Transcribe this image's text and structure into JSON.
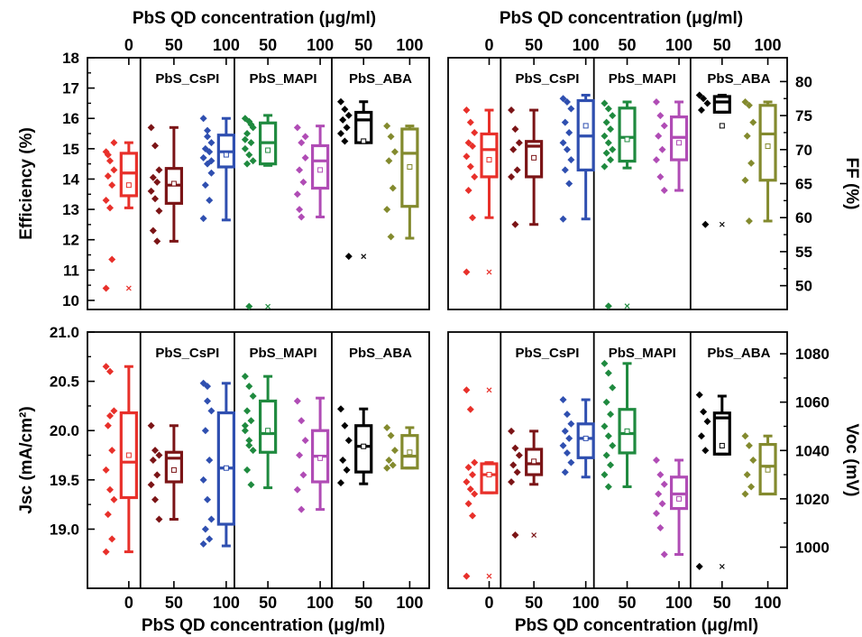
{
  "colors": {
    "CsPI": "#7b1416",
    "ABA": "#000000",
    "MAPI": "#1f8a3f",
    "red": "#e8302a",
    "olive": "#838a2e",
    "blue": "#2f4fb0",
    "magenta": "#b04cb5"
  },
  "figure": {
    "xlabel_top": "PbS QD concentration (μg/ml)",
    "xlabel_bottom": "PbS QD concentration (μg/ml)",
    "xtick_labels": [
      "0",
      "50",
      "100",
      "50",
      "100",
      "50",
      "100"
    ]
  },
  "chart_data": [
    {
      "type": "box",
      "name": "efficiency",
      "ylabel": "Efficiency (%)",
      "y_side": "left",
      "xlabel_side": "top",
      "ylim": [
        9.7,
        18
      ],
      "yticks": [
        10,
        11,
        12,
        13,
        14,
        15,
        16,
        17,
        18
      ],
      "panel_labels": [
        "",
        "PbS_CsPI",
        "PbS_MAPI",
        "PbS_ABA"
      ],
      "groups": [
        {
          "conc": "0",
          "color": "red",
          "q1": 13.45,
          "median": 14.2,
          "q3": 14.85,
          "whisker_low": 13.05,
          "whisker_high": 15.2,
          "mean": 13.8,
          "points": [
            14.9,
            14.6,
            14.3,
            14.1,
            13.8,
            13.3,
            13.05,
            15.2,
            14.8,
            11.35,
            10.4
          ],
          "outliers": [
            10.4
          ]
        },
        {
          "conc": "50",
          "color": "CsPI",
          "q1": 13.2,
          "median": 13.8,
          "q3": 14.35,
          "whisker_low": 11.95,
          "whisker_high": 15.7,
          "mean": 13.85,
          "points": [
            15.7,
            15.1,
            14.3,
            14.05,
            13.9,
            13.6,
            13.35,
            12.95,
            12.3,
            11.95
          ],
          "outliers": []
        },
        {
          "conc": "100",
          "color": "blue",
          "q1": 14.4,
          "median": 14.9,
          "q3": 15.45,
          "whisker_low": 12.65,
          "whisker_high": 16.0,
          "mean": 14.8,
          "points": [
            16.0,
            15.6,
            15.2,
            15.0,
            14.9,
            14.7,
            14.5,
            14.2,
            13.8,
            13.3,
            12.7,
            15.4,
            14.6
          ],
          "outliers": []
        },
        {
          "conc": "50",
          "color": "MAPI",
          "q1": 14.5,
          "median": 15.2,
          "q3": 15.85,
          "whisker_low": 14.45,
          "whisker_high": 16.1,
          "mean": 14.95,
          "points": [
            16.0,
            15.9,
            15.7,
            15.5,
            15.2,
            15.0,
            14.8,
            14.6,
            14.5,
            15.8,
            15.3,
            9.8
          ],
          "outliers": [
            9.8
          ]
        },
        {
          "conc": "100",
          "color": "magenta",
          "q1": 13.7,
          "median": 14.6,
          "q3": 15.1,
          "whisker_low": 12.75,
          "whisker_high": 15.75,
          "mean": 14.3,
          "points": [
            15.7,
            15.2,
            14.7,
            14.3,
            13.9,
            13.5,
            12.75,
            15.4,
            13.0
          ],
          "outliers": []
        },
        {
          "conc": "50",
          "color": "ABA",
          "q1": 15.2,
          "median": 15.95,
          "q3": 16.2,
          "whisker_low": 15.2,
          "whisker_high": 16.55,
          "mean": 15.25,
          "points": [
            16.55,
            16.3,
            16.1,
            15.95,
            15.7,
            15.5,
            15.25,
            11.45
          ],
          "outliers": [
            11.45
          ]
        },
        {
          "conc": "100",
          "color": "olive",
          "q1": 13.1,
          "median": 14.85,
          "q3": 15.65,
          "whisker_low": 12.05,
          "whisker_high": 15.75,
          "mean": 14.4,
          "points": [
            15.75,
            15.4,
            14.9,
            14.6,
            13.7,
            13.0,
            12.1
          ],
          "outliers": []
        }
      ]
    },
    {
      "type": "box",
      "name": "fill-factor",
      "ylabel": "FF (%)",
      "y_side": "right",
      "xlabel_side": "top",
      "ylim": [
        46.5,
        83.5
      ],
      "yticks": [
        50,
        55,
        60,
        65,
        70,
        75,
        80
      ],
      "panel_labels": [
        "",
        "PbS_CsPI",
        "PbS_MAPI",
        "PbS_ABA"
      ],
      "groups": [
        {
          "conc": "0",
          "color": "red",
          "q1": 66.0,
          "median": 70.0,
          "q3": 72.3,
          "whisker_low": 60.0,
          "whisker_high": 75.8,
          "mean": 68.5,
          "points": [
            75.8,
            74.0,
            72.5,
            71.0,
            70.5,
            69.0,
            67.5,
            66.0,
            64.0,
            60.0,
            52.0
          ],
          "outliers": [
            52.0
          ]
        },
        {
          "conc": "50",
          "color": "CsPI",
          "q1": 66.0,
          "median": 70.5,
          "q3": 71.2,
          "whisker_low": 59.0,
          "whisker_high": 75.8,
          "mean": 68.8,
          "points": [
            75.8,
            73.0,
            71.0,
            70.0,
            67.0,
            66.0,
            59.0
          ],
          "outliers": []
        },
        {
          "conc": "100",
          "color": "blue",
          "q1": 67.0,
          "median": 72.0,
          "q3": 77.2,
          "whisker_low": 59.8,
          "whisker_high": 78.0,
          "mean": 73.5,
          "points": [
            77.5,
            77.0,
            76.0,
            74.0,
            72.5,
            71.0,
            70.0,
            68.5,
            67.0,
            65.0,
            59.8
          ],
          "outliers": []
        },
        {
          "conc": "50",
          "color": "MAPI",
          "q1": 68.3,
          "median": 71.8,
          "q3": 76.1,
          "whisker_low": 67.3,
          "whisker_high": 77.0,
          "mean": 71.5,
          "points": [
            76.8,
            76.0,
            75.0,
            74.0,
            73.0,
            72.0,
            71.0,
            70.0,
            69.5,
            68.5,
            67.5,
            47.0
          ],
          "outliers": [
            47.0
          ]
        },
        {
          "conc": "100",
          "color": "magenta",
          "q1": 68.5,
          "median": 71.8,
          "q3": 74.8,
          "whisker_low": 64.0,
          "whisker_high": 77.0,
          "mean": 71.0,
          "points": [
            77.0,
            75.0,
            73.5,
            72.0,
            70.0,
            68.5,
            66.0,
            64.0
          ],
          "outliers": []
        },
        {
          "conc": "50",
          "color": "ABA",
          "q1": 75.5,
          "median": 77.0,
          "q3": 77.8,
          "whisker_low": 75.5,
          "whisker_high": 78.0,
          "mean": 73.5,
          "points": [
            78.0,
            77.5,
            76.8,
            75.8,
            59.0
          ],
          "outliers": [
            59.0
          ]
        },
        {
          "conc": "100",
          "color": "olive",
          "q1": 65.5,
          "median": 72.3,
          "q3": 76.5,
          "whisker_low": 59.5,
          "whisker_high": 77.0,
          "mean": 70.5,
          "points": [
            77.0,
            76.5,
            74.0,
            72.0,
            68.0,
            65.5,
            59.5
          ],
          "outliers": []
        }
      ]
    },
    {
      "type": "box",
      "name": "short-circuit-current",
      "ylabel": "Jsc (mA/cm²)",
      "y_side": "left",
      "xlabel_side": "bottom",
      "ylim": [
        18.4,
        21.0
      ],
      "yticks": [
        19.0,
        19.5,
        20.0,
        20.5,
        21.0
      ],
      "panel_labels": [
        "",
        "PbS_CsPI",
        "PbS_MAPI",
        "PbS_ABA"
      ],
      "groups": [
        {
          "conc": "0",
          "color": "red",
          "q1": 19.32,
          "median": 19.68,
          "q3": 20.18,
          "whisker_low": 18.77,
          "whisker_high": 20.65,
          "mean": 19.75,
          "points": [
            20.65,
            20.6,
            20.2,
            20.05,
            19.8,
            19.6,
            19.4,
            19.3,
            19.15,
            18.9,
            18.77,
            20.15
          ],
          "outliers": []
        },
        {
          "conc": "50",
          "color": "CsPI",
          "q1": 19.48,
          "median": 19.72,
          "q3": 19.78,
          "whisker_low": 19.1,
          "whisker_high": 20.05,
          "mean": 19.6,
          "points": [
            20.05,
            19.8,
            19.75,
            19.7,
            19.55,
            19.45,
            19.3,
            19.1
          ],
          "outliers": []
        },
        {
          "conc": "100",
          "color": "blue",
          "q1": 19.05,
          "median": 19.62,
          "q3": 20.18,
          "whisker_low": 18.83,
          "whisker_high": 20.48,
          "mean": 19.62,
          "points": [
            20.48,
            20.45,
            20.2,
            20.0,
            19.7,
            19.5,
            19.3,
            19.1,
            19.0,
            18.9,
            18.85,
            20.3
          ],
          "outliers": []
        },
        {
          "conc": "50",
          "color": "MAPI",
          "q1": 19.78,
          "median": 19.97,
          "q3": 20.3,
          "whisker_low": 19.42,
          "whisker_high": 20.55,
          "mean": 20.0,
          "points": [
            20.55,
            20.45,
            20.35,
            20.2,
            20.1,
            20.0,
            19.9,
            19.8,
            19.6,
            19.45,
            20.05,
            19.85
          ],
          "outliers": []
        },
        {
          "conc": "100",
          "color": "magenta",
          "q1": 19.48,
          "median": 19.74,
          "q3": 20.0,
          "whisker_low": 19.2,
          "whisker_high": 20.33,
          "mean": 19.72,
          "points": [
            20.3,
            20.1,
            19.9,
            19.75,
            19.55,
            19.4,
            19.2
          ],
          "outliers": []
        },
        {
          "conc": "50",
          "color": "ABA",
          "q1": 19.58,
          "median": 19.84,
          "q3": 20.05,
          "whisker_low": 19.46,
          "whisker_high": 20.22,
          "mean": 19.84,
          "points": [
            20.22,
            20.05,
            19.9,
            19.7,
            19.6,
            19.47
          ],
          "outliers": []
        },
        {
          "conc": "100",
          "color": "olive",
          "q1": 19.62,
          "median": 19.74,
          "q3": 19.95,
          "whisker_low": 19.62,
          "whisker_high": 20.03,
          "mean": 19.78,
          "points": [
            20.03,
            19.95,
            19.8,
            19.7,
            19.65,
            19.62
          ],
          "outliers": []
        }
      ]
    },
    {
      "type": "box",
      "name": "open-circuit-voltage",
      "ylabel": "Voc (mV)",
      "y_side": "right",
      "xlabel_side": "bottom",
      "ylim": [
        983,
        1089
      ],
      "yticks": [
        1000,
        1020,
        1040,
        1060,
        1080
      ],
      "panel_labels": [
        "",
        "PbS_CsPI",
        "PbS_MAPI",
        "PbS_ABA"
      ],
      "groups": [
        {
          "conc": "0",
          "color": "red",
          "q1": 1022.5,
          "median": 1030.0,
          "q3": 1034.5,
          "whisker_low": 1022.5,
          "whisker_high": 1035.0,
          "mean": 1030.0,
          "points": [
            1065.0,
            1057.0,
            1035.0,
            1033.0,
            1030.0,
            1027.0,
            1024.0,
            1022.0,
            1018.0,
            1013.0,
            988.0
          ],
          "outliers": [
            1065.0,
            988.0
          ]
        },
        {
          "conc": "50",
          "color": "CsPI",
          "q1": 1030.0,
          "median": 1034.5,
          "q3": 1040.5,
          "whisker_low": 1026.0,
          "whisker_high": 1048.0,
          "mean": 1035.5,
          "points": [
            1048.0,
            1041.0,
            1038.0,
            1034.0,
            1031.0,
            1027.0,
            1005.0
          ],
          "outliers": [
            1005.0
          ]
        },
        {
          "conc": "100",
          "color": "blue",
          "q1": 1037.0,
          "median": 1045.0,
          "q3": 1051.0,
          "whisker_low": 1029.0,
          "whisker_high": 1061.0,
          "mean": 1045.0,
          "points": [
            1061.0,
            1055.0,
            1051.0,
            1048.0,
            1045.0,
            1042.0,
            1039.0,
            1035.0,
            1031.0
          ],
          "outliers": []
        },
        {
          "conc": "50",
          "color": "MAPI",
          "q1": 1039.0,
          "median": 1047.0,
          "q3": 1057.0,
          "whisker_low": 1025.0,
          "whisker_high": 1076.0,
          "mean": 1048.0,
          "points": [
            1076.0,
            1072.0,
            1066.0,
            1060.0,
            1055.0,
            1050.0,
            1046.0,
            1042.0,
            1038.0,
            1034.0,
            1030.0,
            1025.0
          ],
          "outliers": []
        },
        {
          "conc": "100",
          "color": "magenta",
          "q1": 1016.0,
          "median": 1022.0,
          "q3": 1029.0,
          "whisker_low": 997.0,
          "whisker_high": 1036.0,
          "mean": 1020.0,
          "points": [
            1036.0,
            1030.0,
            1026.0,
            1022.0,
            1018.0,
            1014.0,
            1008.0,
            997.0
          ],
          "outliers": []
        },
        {
          "conc": "50",
          "color": "ABA",
          "q1": 1038.5,
          "median": 1053.5,
          "q3": 1055.5,
          "whisker_low": 1038.5,
          "whisker_high": 1062.5,
          "mean": 1042.0,
          "points": [
            1063.0,
            1056.0,
            1052.0,
            1046.0,
            1040.0,
            992.0
          ],
          "outliers": [
            992.0
          ]
        },
        {
          "conc": "100",
          "color": "olive",
          "q1": 1022.0,
          "median": 1033.5,
          "q3": 1042.5,
          "whisker_low": 1022.0,
          "whisker_high": 1046.0,
          "mean": 1032.0,
          "points": [
            1046.0,
            1042.0,
            1036.0,
            1030.0,
            1025.0,
            1022.0
          ],
          "outliers": []
        }
      ]
    }
  ]
}
